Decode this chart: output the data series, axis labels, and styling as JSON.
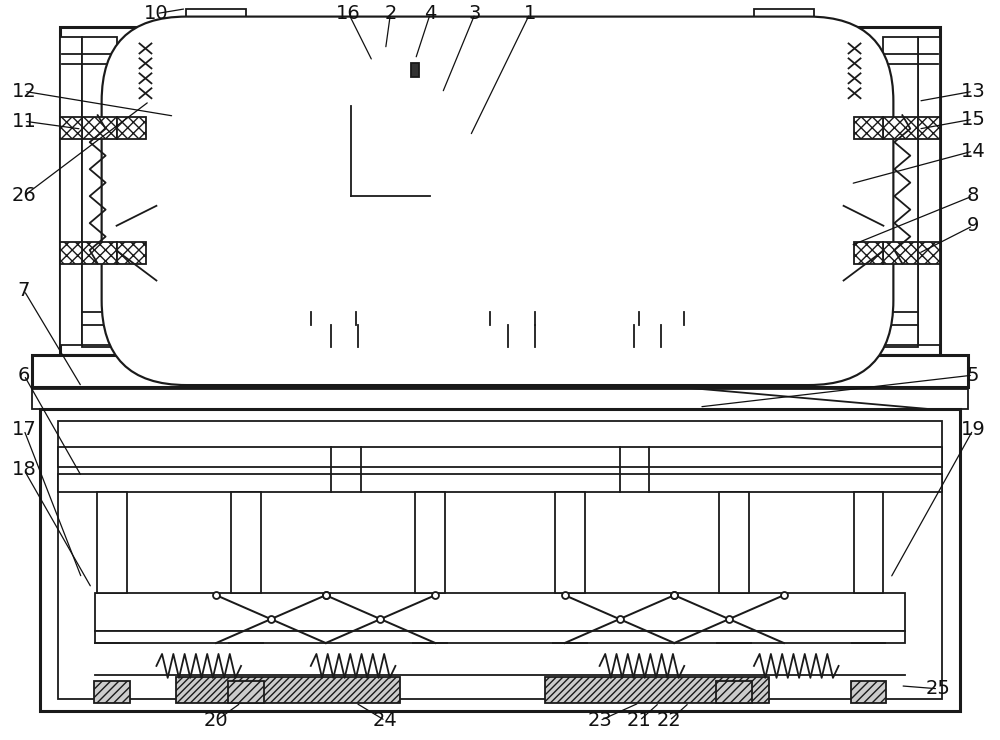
{
  "bg_color": "#ffffff",
  "lc": "#1a1a1a",
  "lw": 1.3,
  "tlw": 2.2,
  "fig_w": 10.0,
  "fig_h": 7.4
}
